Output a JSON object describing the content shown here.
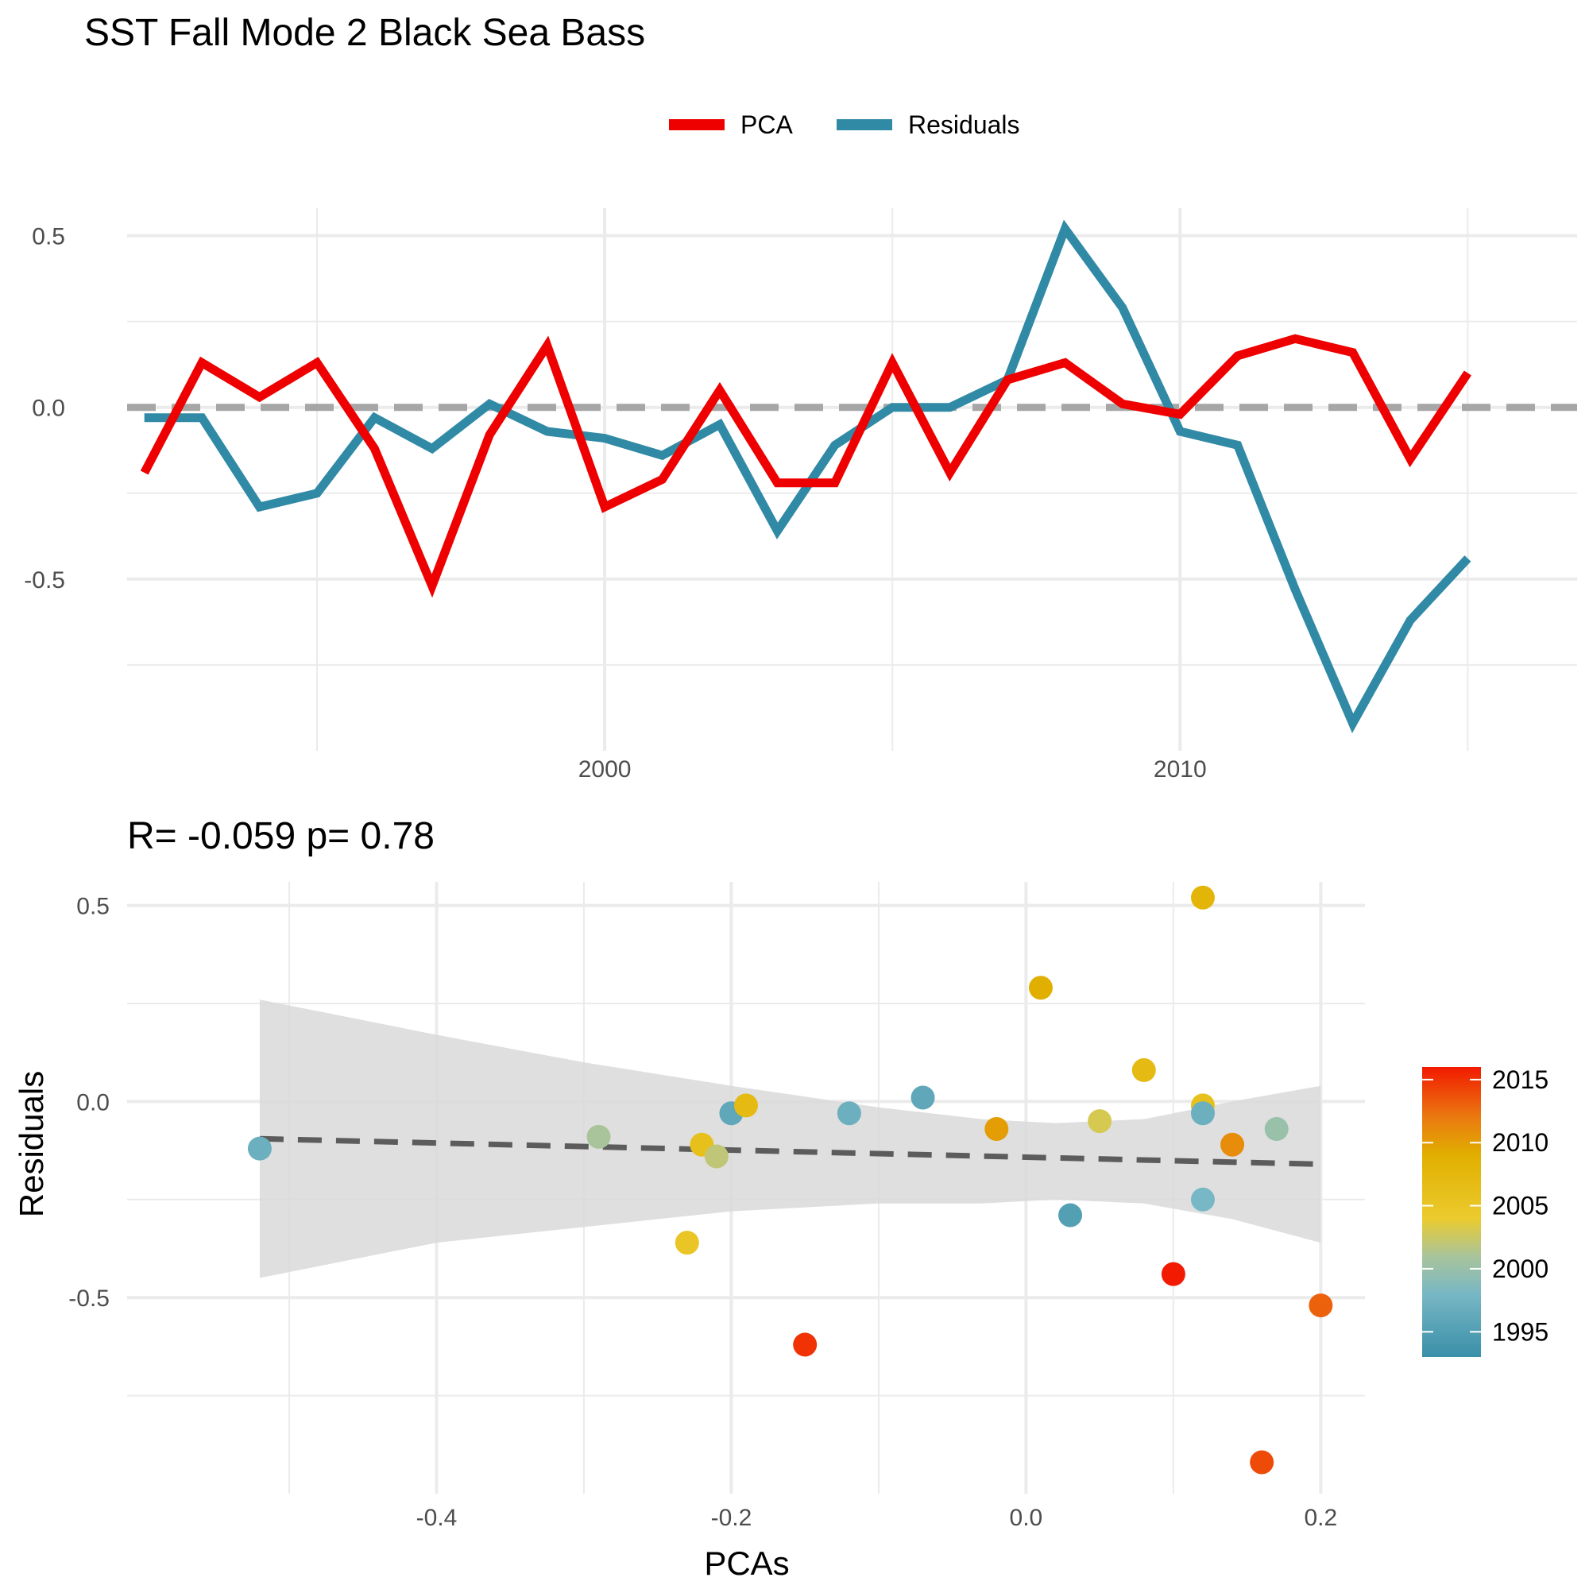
{
  "title": "SST Fall Mode 2 Black Sea Bass",
  "legend": {
    "items": [
      {
        "label": "PCA",
        "color": "#ee0000"
      },
      {
        "label": "Residuals",
        "color": "#318aa5"
      }
    ]
  },
  "colors": {
    "pca": "#ee0000",
    "residuals": "#318aa5",
    "grid": "#ebebeb",
    "zero_line": "#a6a6a6",
    "ribbon": "#d9d9d9",
    "fit_line": "#5c5c5c"
  },
  "chart_data": [
    {
      "type": "line",
      "title": "",
      "xlabel": "",
      "ylabel": "",
      "x": [
        1992,
        1993,
        1994,
        1995,
        1996,
        1997,
        1998,
        1999,
        2000,
        2001,
        2002,
        2003,
        2004,
        2005,
        2006,
        2007,
        2008,
        2009,
        2010,
        2011,
        2012,
        2013,
        2014,
        2015,
        2016
      ],
      "series": [
        {
          "name": "PCA",
          "values": [
            -0.19,
            0.13,
            0.03,
            0.13,
            -0.12,
            -0.52,
            -0.08,
            0.18,
            -0.29,
            -0.21,
            0.05,
            -0.22,
            -0.22,
            0.13,
            -0.19,
            0.08,
            0.13,
            0.01,
            -0.02,
            0.15,
            0.2,
            0.16,
            -0.15,
            0.1,
            null
          ]
        },
        {
          "name": "Residuals",
          "values": [
            -0.03,
            -0.03,
            -0.29,
            -0.25,
            -0.03,
            -0.12,
            0.01,
            -0.07,
            -0.09,
            -0.14,
            -0.05,
            -0.36,
            -0.11,
            0.0,
            0.0,
            0.08,
            0.52,
            0.29,
            -0.07,
            -0.11,
            -0.53,
            -0.92,
            -0.62,
            -0.44,
            null
          ]
        }
      ],
      "xticks": [
        2000,
        2010
      ],
      "yticks": [
        0.5,
        0.0,
        -0.5
      ],
      "ytick_labels": [
        "0.5",
        "0.0",
        "-0.5"
      ],
      "xlim": [
        1991.7,
        2016.9
      ],
      "ylim": [
        -1.0,
        0.58
      ],
      "reference_line": 0,
      "grid": true,
      "legend_position": "top"
    },
    {
      "type": "scatter",
      "title": "R= -0.059  p= 0.78",
      "xlabel": "PCAs",
      "ylabel": "Residuals",
      "xlim": [
        -0.61,
        0.23
      ],
      "ylim": [
        -1.0,
        0.56
      ],
      "xticks": [
        -0.4,
        -0.2,
        0.0,
        0.2
      ],
      "xtick_labels": [
        "-0.4",
        "-0.2",
        "0.0",
        "0.2"
      ],
      "yticks": [
        0.5,
        0.0,
        -0.5
      ],
      "ytick_labels": [
        "0.5",
        "0.0",
        "-0.5"
      ],
      "grid": true,
      "points": [
        {
          "x": -0.52,
          "y": -0.12,
          "year": 1997
        },
        {
          "x": -0.29,
          "y": -0.09,
          "year": 2001
        },
        {
          "x": -0.22,
          "y": -0.11,
          "year": 2006
        },
        {
          "x": -0.21,
          "y": -0.14,
          "year": 2002
        },
        {
          "x": -0.23,
          "y": -0.36,
          "year": 2005
        },
        {
          "x": -0.2,
          "y": -0.03,
          "year": 1996
        },
        {
          "x": -0.19,
          "y": -0.01,
          "year": 2007
        },
        {
          "x": -0.15,
          "y": -0.62,
          "year": 2015
        },
        {
          "x": -0.12,
          "y": -0.03,
          "year": 1997
        },
        {
          "x": -0.07,
          "y": 0.01,
          "year": 1996
        },
        {
          "x": -0.02,
          "y": -0.07,
          "year": 2010
        },
        {
          "x": 0.01,
          "y": 0.29,
          "year": 2009
        },
        {
          "x": 0.03,
          "y": -0.29,
          "year": 1995
        },
        {
          "x": 0.05,
          "y": -0.05,
          "year": 2003
        },
        {
          "x": 0.08,
          "y": 0.08,
          "year": 2007
        },
        {
          "x": 0.1,
          "y": -0.44,
          "year": 2016
        },
        {
          "x": 0.12,
          "y": 0.52,
          "year": 2008
        },
        {
          "x": 0.12,
          "y": -0.01,
          "year": 2006
        },
        {
          "x": 0.12,
          "y": -0.03,
          "year": 1997
        },
        {
          "x": 0.12,
          "y": -0.25,
          "year": 1998
        },
        {
          "x": 0.14,
          "y": -0.11,
          "year": 2011
        },
        {
          "x": 0.16,
          "y": -0.92,
          "year": 2014
        },
        {
          "x": 0.17,
          "y": -0.07,
          "year": 2000
        },
        {
          "x": 0.2,
          "y": -0.52,
          "year": 2013
        }
      ],
      "fit_line": {
        "x": [
          -0.52,
          0.2
        ],
        "y": [
          -0.095,
          -0.16
        ]
      },
      "confidence_band": {
        "x": [
          -0.52,
          -0.4,
          -0.3,
          -0.2,
          -0.1,
          -0.03,
          0.02,
          0.08,
          0.14,
          0.2
        ],
        "upper": [
          0.26,
          0.17,
          0.1,
          0.04,
          -0.015,
          -0.045,
          -0.055,
          -0.045,
          0.0,
          0.04
        ],
        "lower": [
          -0.45,
          -0.36,
          -0.32,
          -0.28,
          -0.26,
          -0.26,
          -0.25,
          -0.26,
          -0.3,
          -0.36
        ]
      },
      "colorbar": {
        "title": "",
        "ticks": [
          2015,
          2010,
          2005,
          2000,
          1995
        ],
        "tick_labels": [
          "2015",
          "2010",
          "2005",
          "2000",
          "1995"
        ],
        "range": [
          1993,
          2016
        ],
        "stops": [
          {
            "value": 1993,
            "color": "#3a8fa8"
          },
          {
            "value": 1998,
            "color": "#78b7c5"
          },
          {
            "value": 2001,
            "color": "#a9c49b"
          },
          {
            "value": 2004,
            "color": "#ebcb2e"
          },
          {
            "value": 2009,
            "color": "#e1af00"
          },
          {
            "value": 2012,
            "color": "#ea7a10"
          },
          {
            "value": 2016,
            "color": "#f21a00"
          }
        ]
      }
    }
  ]
}
